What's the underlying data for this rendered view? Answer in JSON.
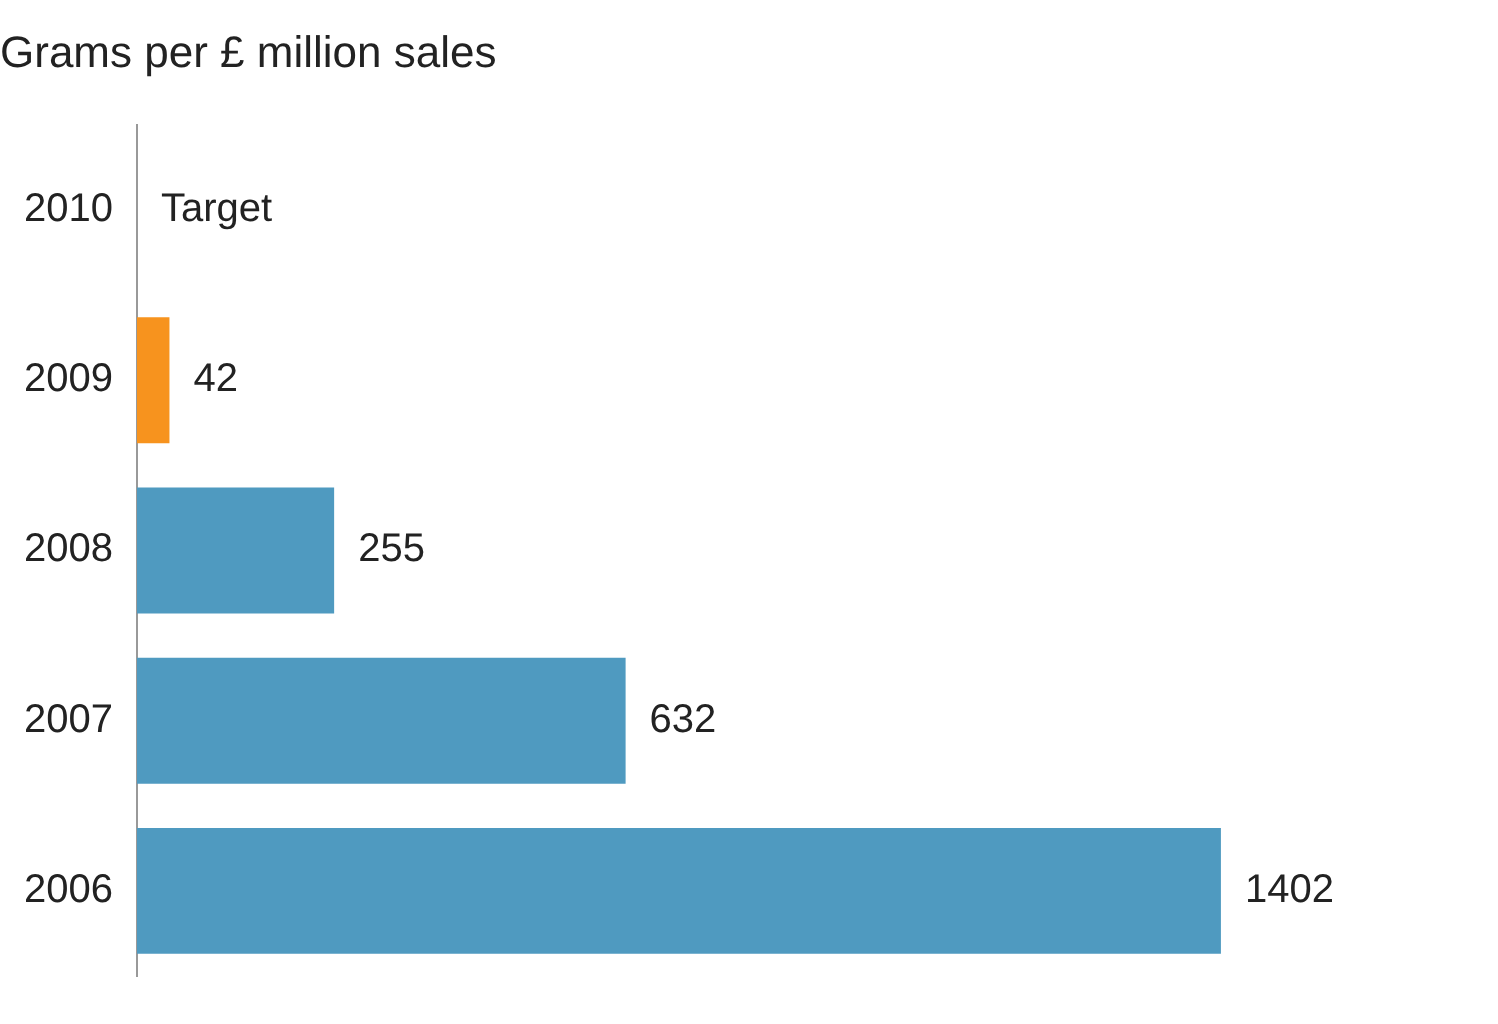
{
  "chart_data": {
    "type": "bar",
    "orientation": "horizontal",
    "title": "Grams per £ million sales",
    "categories": [
      "2010",
      "2009",
      "2008",
      "2007",
      "2006"
    ],
    "values": [
      null,
      42,
      255,
      632,
      1402
    ],
    "value_labels": [
      "Target",
      "42",
      "255",
      "632",
      "1402"
    ],
    "colors": [
      "#4f9ac0",
      "#f7931e",
      "#4f9ac0",
      "#4f9ac0",
      "#4f9ac0"
    ],
    "legend": false
  }
}
